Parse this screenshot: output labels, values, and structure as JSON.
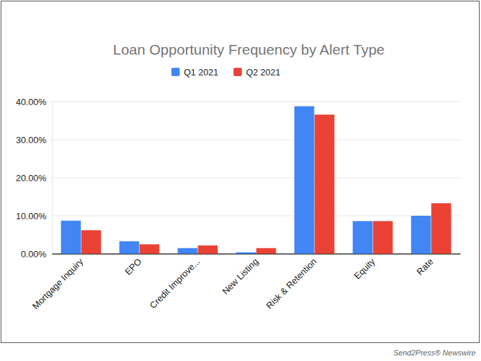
{
  "chart_data": {
    "type": "bar",
    "title": "Loan Opportunity Frequency by Alert Type",
    "annotations": [
      "Send2Press® Newswire"
    ],
    "categories": [
      "Mortgage Inquiry",
      "EPO",
      "Credit Improve...",
      "New Listing",
      "Risk & Retention",
      "Equity",
      "Rate"
    ],
    "series": [
      {
        "name": "Q1 2021",
        "color": "#4285f4",
        "values": [
          8.7,
          3.3,
          1.5,
          0.4,
          38.8,
          8.6,
          10.0
        ]
      },
      {
        "name": "Q2 2021",
        "color": "#ea4335",
        "values": [
          6.2,
          2.5,
          2.2,
          1.5,
          36.6,
          8.6,
          13.3
        ]
      }
    ],
    "ylim": [
      0,
      40
    ],
    "yticks": [
      {
        "value": 0,
        "label": "0.00%"
      },
      {
        "value": 10,
        "label": "10.00%"
      },
      {
        "value": 20,
        "label": "20.00%"
      },
      {
        "value": 30,
        "label": "30.00%"
      },
      {
        "value": 40,
        "label": "40.00%"
      }
    ],
    "grid": true,
    "legend": "top"
  }
}
